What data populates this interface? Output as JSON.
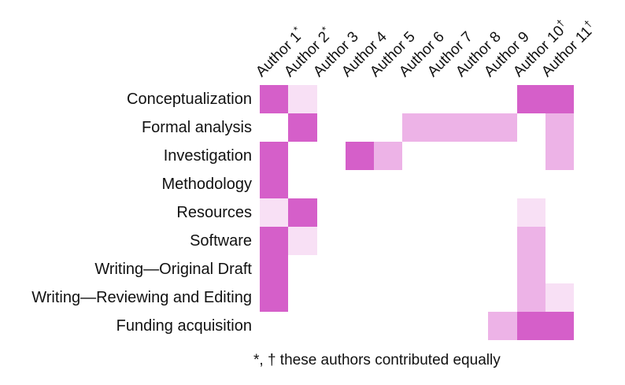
{
  "chart_data": {
    "type": "heatmap",
    "title": "",
    "rows": [
      "Conceptualization",
      "Formal analysis",
      "Investigation",
      "Methodology",
      "Resources",
      "Software",
      "Writing—Original Draft",
      "Writing—Reviewing and Editing",
      "Funding acquisition"
    ],
    "columns": [
      {
        "name": "Author 1",
        "marker": "*"
      },
      {
        "name": "Author 2",
        "marker": "*"
      },
      {
        "name": "Author 3",
        "marker": ""
      },
      {
        "name": "Author 4",
        "marker": ""
      },
      {
        "name": "Author 5",
        "marker": ""
      },
      {
        "name": "Author 6",
        "marker": ""
      },
      {
        "name": "Author 7",
        "marker": ""
      },
      {
        "name": "Author 8",
        "marker": ""
      },
      {
        "name": "Author 9",
        "marker": ""
      },
      {
        "name": "Author 10",
        "marker": "†"
      },
      {
        "name": "Author 11",
        "marker": "†"
      }
    ],
    "values_percent": [
      [
        100,
        20,
        0,
        0,
        0,
        0,
        0,
        0,
        0,
        100,
        100
      ],
      [
        0,
        100,
        0,
        0,
        0,
        50,
        50,
        50,
        50,
        0,
        50
      ],
      [
        100,
        0,
        0,
        100,
        50,
        0,
        0,
        0,
        0,
        0,
        50
      ],
      [
        100,
        0,
        0,
        0,
        0,
        0,
        0,
        0,
        0,
        0,
        0
      ],
      [
        20,
        100,
        0,
        0,
        0,
        0,
        0,
        0,
        0,
        20,
        0
      ],
      [
        100,
        20,
        0,
        0,
        0,
        0,
        0,
        0,
        0,
        50,
        0
      ],
      [
        100,
        0,
        0,
        0,
        0,
        0,
        0,
        0,
        0,
        50,
        0
      ],
      [
        100,
        0,
        0,
        0,
        0,
        0,
        0,
        0,
        0,
        50,
        20
      ],
      [
        0,
        0,
        0,
        0,
        0,
        0,
        0,
        0,
        50,
        100,
        100
      ]
    ],
    "color_scale": {
      "0": "#ffffff",
      "20": "#f8e0f5",
      "50": "#edb3e7",
      "100": "#d55fc9"
    },
    "legend": "none",
    "grid": "off",
    "footnote": "*, † these authors contributed equally"
  }
}
